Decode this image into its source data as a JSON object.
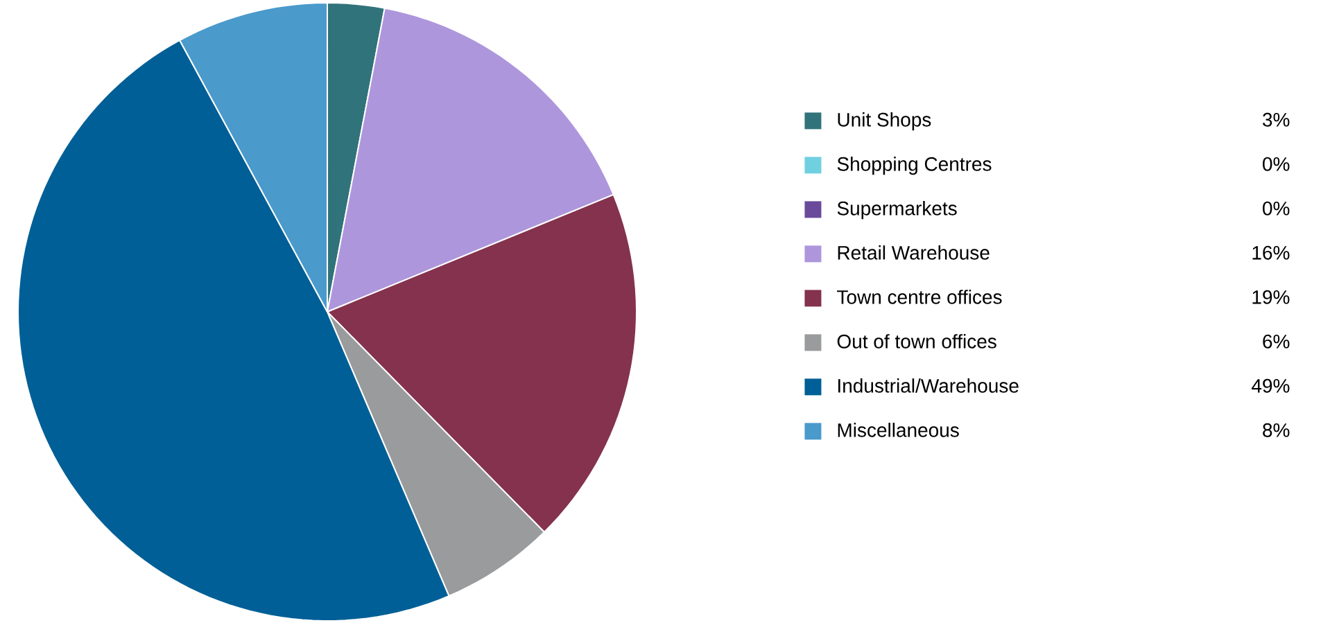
{
  "chart_data": {
    "type": "pie",
    "categories": [
      "Unit Shops",
      "Shopping Centres",
      "Supermarkets",
      "Retail Warehouse",
      "Town centre offices",
      "Out of town offices",
      "Industrial/Warehouse",
      "Miscellaneous"
    ],
    "values": [
      3,
      0,
      0,
      16,
      19,
      6,
      49,
      8
    ],
    "value_labels": [
      "3%",
      "0%",
      "0%",
      "16%",
      "19%",
      "6%",
      "49%",
      "8%"
    ],
    "colors": [
      "#31737a",
      "#6fd0e0",
      "#6a4a9a",
      "#ae96dc",
      "#84324e",
      "#9a9b9d",
      "#005f96",
      "#4a9acc"
    ],
    "legend": "right"
  }
}
